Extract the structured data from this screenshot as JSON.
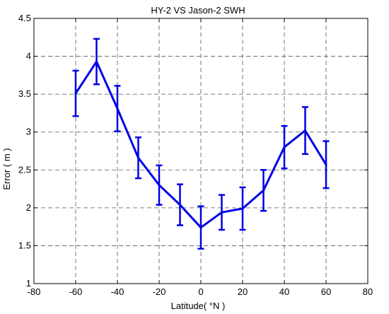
{
  "chart_data": {
    "type": "line",
    "title": "HY-2 VS Jason-2 SWH",
    "xlabel": "Latitude( °N )",
    "ylabel": "Error ( m )",
    "xlim": [
      -80,
      80
    ],
    "ylim": [
      1,
      4.5
    ],
    "xticks": [
      -80,
      -60,
      -40,
      -20,
      0,
      20,
      40,
      60,
      80
    ],
    "yticks": [
      1,
      1.5,
      2,
      2.5,
      3,
      3.5,
      4,
      4.5
    ],
    "grid": true,
    "series": [
      {
        "color": "#0000e6",
        "x": [
          -60,
          -50,
          -40,
          -30,
          -20,
          -10,
          0,
          10,
          20,
          30,
          40,
          50,
          60
        ],
        "y": [
          3.51,
          3.93,
          3.31,
          2.66,
          2.3,
          2.04,
          1.74,
          1.94,
          1.99,
          2.23,
          2.8,
          3.02,
          2.57
        ],
        "error": [
          0.3,
          0.3,
          0.3,
          0.27,
          0.26,
          0.27,
          0.28,
          0.23,
          0.28,
          0.27,
          0.28,
          0.31,
          0.31
        ]
      }
    ]
  }
}
